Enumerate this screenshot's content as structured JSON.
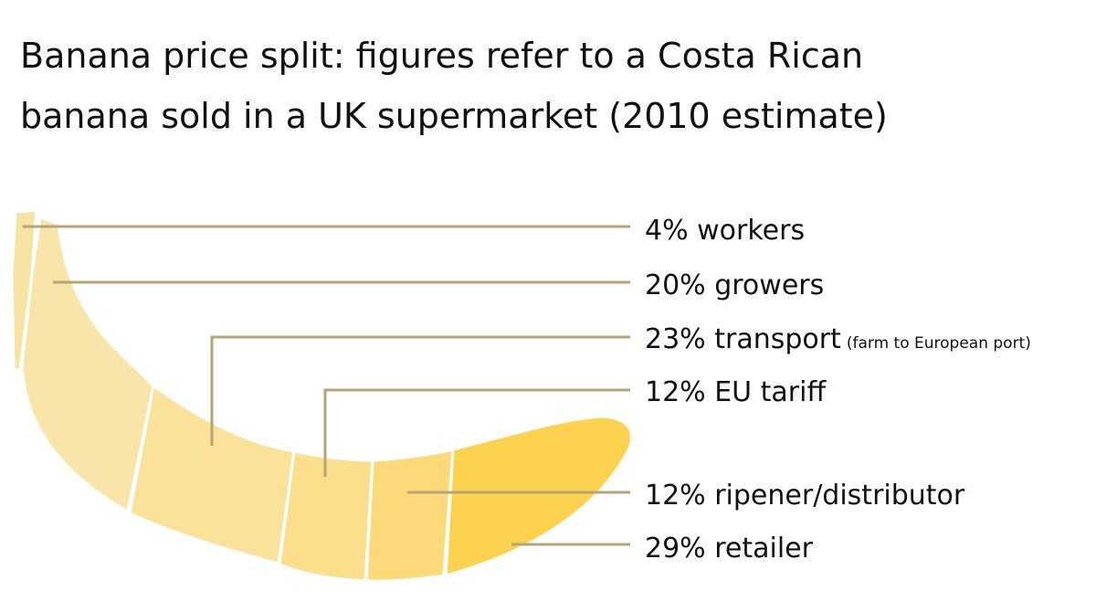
{
  "title": {
    "line1": "Banana price split: figures refer to a Costa Rican",
    "line2": "banana sold in a UK supermarket (2010 estimate)"
  },
  "colors": {
    "leader_line": "#b5a577",
    "segment_outline": "#ffffff",
    "text": "#111111"
  },
  "segments": [
    {
      "id": "workers",
      "percent": 4,
      "label": "4% workers",
      "note": "",
      "color": "#f7e3a4"
    },
    {
      "id": "growers",
      "percent": 20,
      "label": "20% growers",
      "note": "",
      "color": "#f9e5aa"
    },
    {
      "id": "transport",
      "percent": 23,
      "label": "23% transport",
      "note": "(farm to European port)",
      "color": "#fae29a"
    },
    {
      "id": "eu-tariff",
      "percent": 12,
      "label": "12% EU tariff",
      "note": "",
      "color": "#fbdf8c"
    },
    {
      "id": "ripener",
      "percent": 12,
      "label": "12% ripener/distributor",
      "note": "",
      "color": "#fcda7a"
    },
    {
      "id": "retailer",
      "percent": 29,
      "label": "29% retailer",
      "note": "",
      "color": "#fdd24f"
    }
  ]
}
